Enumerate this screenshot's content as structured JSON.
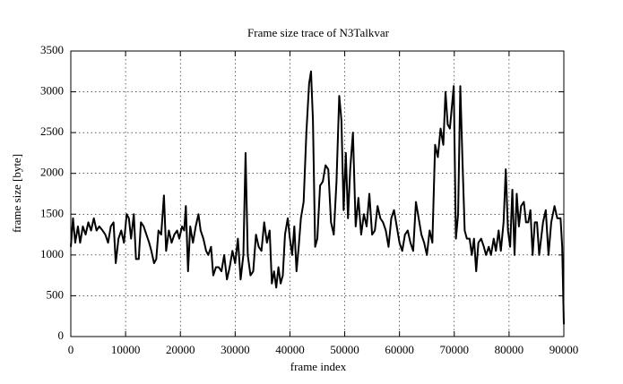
{
  "chart_data": {
    "type": "line",
    "title": "Frame size trace of N3Talkvar",
    "x_label": "frame index",
    "y_label": "frame size [byte]",
    "xlim": [
      0,
      90000
    ],
    "xticks": [
      0,
      10000,
      20000,
      30000,
      40000,
      50000,
      60000,
      70000,
      80000,
      90000
    ],
    "ylim": [
      0,
      3500
    ],
    "yticks": [
      0,
      500,
      1000,
      1500,
      2000,
      2500,
      3000,
      3500
    ],
    "grid": true,
    "x": [
      0,
      400,
      800,
      1300,
      1700,
      2200,
      2700,
      3200,
      3700,
      4200,
      4700,
      5200,
      5800,
      6300,
      6800,
      7300,
      7800,
      8200,
      8700,
      9200,
      9700,
      10200,
      10600,
      11000,
      11500,
      11900,
      12400,
      12800,
      13300,
      13800,
      14300,
      14700,
      15200,
      15600,
      16000,
      16500,
      17000,
      17400,
      17900,
      18400,
      18900,
      19400,
      19800,
      20300,
      20700,
      21000,
      21400,
      21800,
      22300,
      22800,
      23300,
      23700,
      24200,
      24700,
      25100,
      25600,
      26000,
      26500,
      27000,
      27500,
      28000,
      28500,
      29000,
      29500,
      30000,
      30500,
      31000,
      31500,
      31900,
      32300,
      32800,
      33300,
      33800,
      34300,
      34800,
      35300,
      35800,
      36300,
      36700,
      37100,
      37500,
      37900,
      38300,
      38700,
      39100,
      39600,
      40000,
      40400,
      40800,
      41200,
      41600,
      42000,
      42500,
      43000,
      43500,
      43850,
      44200,
      44600,
      45000,
      45500,
      46000,
      46500,
      47000,
      47500,
      48000,
      48500,
      49000,
      49400,
      49800,
      50200,
      50600,
      51000,
      51500,
      52000,
      52500,
      53000,
      53500,
      54000,
      54500,
      55000,
      55500,
      56000,
      56500,
      57000,
      57500,
      58000,
      58500,
      59000,
      59500,
      60000,
      60500,
      61000,
      61500,
      62000,
      62500,
      63000,
      63500,
      64000,
      64500,
      65000,
      65500,
      66000,
      66500,
      67000,
      67500,
      68000,
      68400,
      68800,
      69200,
      69900,
      70300,
      70700,
      71100,
      71500,
      71900,
      72300,
      72800,
      73200,
      73600,
      74000,
      74400,
      74900,
      75400,
      75800,
      76300,
      76700,
      77200,
      77600,
      78100,
      78500,
      79000,
      79400,
      79800,
      80200,
      80600,
      81000,
      81400,
      81800,
      82200,
      82700,
      83100,
      83500,
      83900,
      84300,
      84700,
      85100,
      85500,
      86200,
      86700,
      87200,
      87700,
      88300,
      88800,
      89400,
      89700,
      90000
    ],
    "series": [
      {
        "color": "#000000",
        "values": [
          1100,
          1450,
          1150,
          1350,
          1150,
          1350,
          1250,
          1400,
          1300,
          1450,
          1300,
          1350,
          1300,
          1250,
          1150,
          1350,
          1400,
          900,
          1200,
          1300,
          1150,
          1500,
          1450,
          1200,
          1500,
          950,
          950,
          1400,
          1350,
          1250,
          1150,
          1050,
          900,
          950,
          1300,
          1250,
          1730,
          1050,
          1300,
          1150,
          1250,
          1300,
          1200,
          1350,
          1300,
          1600,
          800,
          1350,
          1150,
          1350,
          1500,
          1300,
          1200,
          1050,
          1000,
          1100,
          750,
          850,
          850,
          800,
          1000,
          700,
          850,
          1050,
          900,
          1200,
          700,
          1000,
          2250,
          1000,
          750,
          800,
          1250,
          1100,
          1050,
          1400,
          1150,
          1300,
          650,
          800,
          600,
          850,
          650,
          750,
          1250,
          1450,
          1200,
          1000,
          1350,
          800,
          1100,
          1450,
          1650,
          2500,
          3100,
          3250,
          2650,
          1100,
          1200,
          1850,
          1900,
          2100,
          2050,
          1400,
          1250,
          1900,
          2950,
          2650,
          1550,
          2250,
          1450,
          2050,
          2500,
          1350,
          1700,
          1250,
          1500,
          1350,
          1750,
          1250,
          1300,
          1600,
          1450,
          1400,
          1300,
          1100,
          1450,
          1550,
          1350,
          1150,
          1050,
          1250,
          1300,
          1150,
          1050,
          1650,
          1450,
          1250,
          1150,
          1000,
          1300,
          1150,
          2350,
          2200,
          2550,
          2350,
          3000,
          2600,
          2550,
          3070,
          1200,
          1500,
          3070,
          2150,
          1300,
          1200,
          1200,
          1000,
          1200,
          800,
          1150,
          1200,
          1100,
          1000,
          1100,
          1000,
          1200,
          1050,
          1300,
          1050,
          1400,
          2050,
          1300,
          1100,
          1800,
          1000,
          1750,
          1350,
          1600,
          1650,
          1400,
          1400,
          1550,
          1000,
          1400,
          1400,
          1000,
          1400,
          1550,
          1000,
          1400,
          1600,
          1450,
          1450,
          1100,
          150
        ]
      }
    ]
  }
}
